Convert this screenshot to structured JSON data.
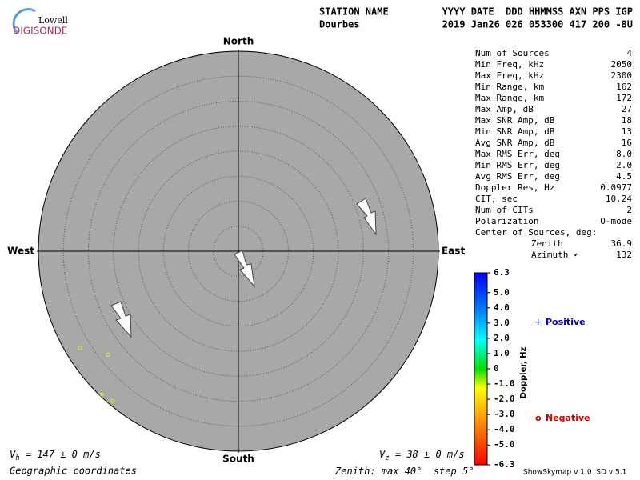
{
  "logo": {
    "top": "Lowell",
    "bottom": "DIGISONDE"
  },
  "header": {
    "row1": {
      "name": "STATION NAME",
      "fields": "YYYY DATE  DDD HHMMSS AXN PPS IGP"
    },
    "row2": {
      "name": "Dourbes",
      "fields": "2019 Jan26 026 053300 417 200 -8U"
    }
  },
  "compass": {
    "north": "North",
    "south": "South",
    "east": "East",
    "west": "West"
  },
  "table": {
    "rows": [
      [
        "Num of Sources",
        "4"
      ],
      [
        "Min Freq, kHz",
        "2050"
      ],
      [
        "Max Freq, kHz",
        "2300"
      ],
      [
        "Min Range, km",
        "162"
      ],
      [
        "Max Range, km",
        "172"
      ],
      [
        "Max Amp, dB",
        "27"
      ],
      [
        "Max SNR Amp, dB",
        "18"
      ],
      [
        "Min SNR Amp, dB",
        "13"
      ],
      [
        "Avg SNR Amp, dB",
        "16"
      ],
      [
        "Max RMS Err, deg",
        "8.0"
      ],
      [
        "Min RMS Err, deg",
        "2.0"
      ],
      [
        "Avg RMS Err, deg",
        "4.5"
      ],
      [
        "Doppler Res, Hz",
        "0.0977"
      ],
      [
        "CIT, sec",
        "10.24"
      ],
      [
        "Num of CITs",
        "2"
      ],
      [
        "Polarization",
        "O-mode"
      ],
      [
        "Center of Sources, deg:",
        ""
      ]
    ],
    "center": [
      [
        "Zenith",
        "36.9"
      ],
      [
        "Azimuth ↶",
        "132"
      ]
    ]
  },
  "colorbar": {
    "label": "Doppler, Hz",
    "lim": [
      -6.3,
      6.3
    ],
    "ticks": [
      6.3,
      {
        "value": 5,
        "label": "5.0"
      },
      {
        "value": 4,
        "label": "4.0"
      },
      {
        "value": 3,
        "label": "3.0"
      },
      {
        "value": 2,
        "label": "2.0"
      },
      {
        "value": 1,
        "label": "1.0"
      },
      0,
      {
        "value": -1,
        "label": "-1.0"
      },
      {
        "value": -2,
        "label": "-2.0"
      },
      {
        "value": -3,
        "label": "-3.0"
      },
      {
        "value": -4,
        "label": "-4.0"
      },
      {
        "value": -5,
        "label": "-5.0"
      },
      -6.3
    ]
  },
  "legend": {
    "positive": {
      "symbol": "+",
      "text": "Positive"
    },
    "negative": {
      "symbol": "o",
      "text": "Negative"
    }
  },
  "sources": [
    {
      "zenith": 37.1,
      "azimuth": 238.6,
      "color": "#c8f03c"
    },
    {
      "zenith": 33.3,
      "azimuth": 231.6,
      "color": "#c8f03c"
    },
    {
      "zenith": 39.6,
      "azimuth": 223.7,
      "color": "#c8f03c"
    },
    {
      "zenith": 39.1,
      "azimuth": 220.0,
      "color": "#c8f03c"
    }
  ],
  "footer": {
    "vh": {
      "v": "V",
      "sub": "h",
      "rest": " = 147 ± 0 m/s"
    },
    "vz": {
      "v": "V",
      "sub": "z",
      "rest": " = 38 ± 0 m/s"
    },
    "coords": "Geographic coordinates",
    "zenith": {
      "prefix": "Zenith: max ",
      "max": 40,
      "mid": "°  step ",
      "step": 5,
      "suffix": "°"
    },
    "version": "ShowSkymap v 1.0  SD v 5.1"
  }
}
